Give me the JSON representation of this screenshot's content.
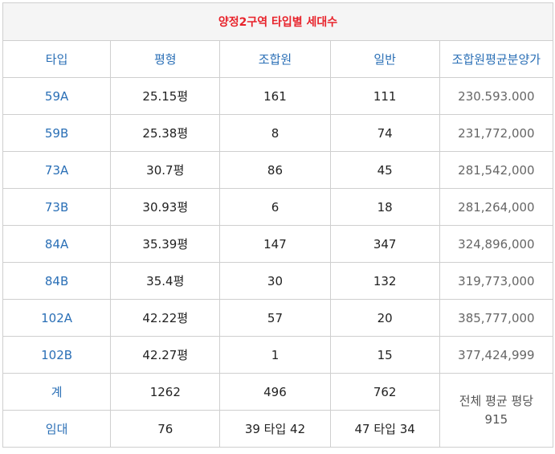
{
  "title": "양정2구역 타입별 세대수",
  "headers": [
    "타입",
    "평형",
    "조합원",
    "일반",
    "조합원평균분양가"
  ],
  "rows": [
    {
      "type": "59A",
      "size": "25.15평",
      "members": "161",
      "general": "111",
      "price": "230.593.000"
    },
    {
      "type": "59B",
      "size": "25.38평",
      "members": "8",
      "general": "74",
      "price": "231,772,000"
    },
    {
      "type": "73A",
      "size": "30.7평",
      "members": "86",
      "general": "45",
      "price": "281,542,000"
    },
    {
      "type": "73B",
      "size": "30.93평",
      "members": "6",
      "general": "18",
      "price": "281,264,000"
    },
    {
      "type": "84A",
      "size": "35.39평",
      "members": "147",
      "general": "347",
      "price": "324,896,000"
    },
    {
      "type": "84B",
      "size": "35.4평",
      "members": "30",
      "general": "132",
      "price": "319,773,000"
    },
    {
      "type": "102A",
      "size": "42.22평",
      "members": "57",
      "general": "20",
      "price": "385,777,000"
    },
    {
      "type": "102B",
      "size": "42.27평",
      "members": "1",
      "general": "15",
      "price": "377,424,999"
    }
  ],
  "total": {
    "label": "계",
    "size": "1262",
    "members": "496",
    "general": "762"
  },
  "rental": {
    "label": "임대",
    "size": "76",
    "members": "39 타입 42",
    "general": "47 타입 34"
  },
  "summary": {
    "line1": "전체 평균 평당",
    "line2": "915"
  }
}
